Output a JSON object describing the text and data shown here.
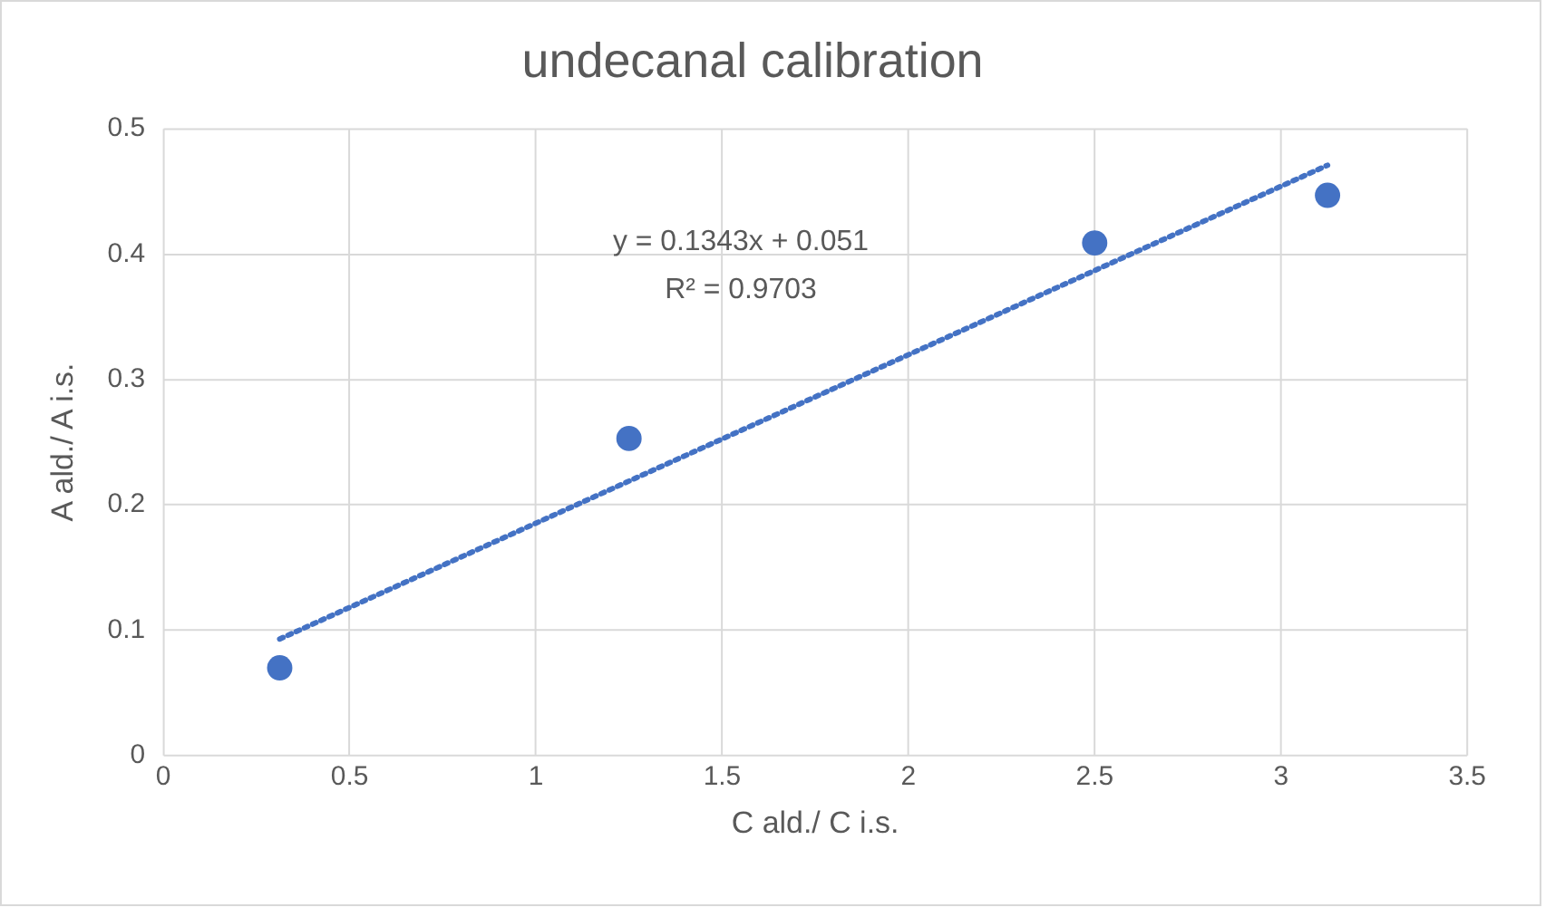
{
  "chart_data": {
    "type": "scatter",
    "title": "undecanal calibration",
    "xlabel": "C ald./ C i.s.",
    "ylabel": "A ald./ A i.s.",
    "x": [
      0.3125,
      1.25,
      2.5,
      3.125
    ],
    "series": [
      {
        "type": "scatter",
        "color": "#4472c4",
        "values": [
          0.07,
          0.253,
          0.409,
          0.447
        ],
        "marker": "circle"
      },
      {
        "type": "line",
        "color": "#4472c4",
        "x": [
          0.3125,
          3.125
        ],
        "values": [
          0.093,
          0.471
        ],
        "marker": "none",
        "line_style": "dotted"
      }
    ],
    "annotations": [
      "y = 0.1343x + 0.051",
      "R² = 0.9703"
    ],
    "xlim": [
      0,
      3.5
    ],
    "xticks": [
      0,
      0.5,
      1,
      1.5,
      2,
      2.5,
      3,
      3.5
    ],
    "ylim": [
      0,
      0.5
    ],
    "yticks": [
      0,
      0.1,
      0.2,
      0.3,
      0.4,
      0.5
    ],
    "grid": true,
    "legend": false
  }
}
